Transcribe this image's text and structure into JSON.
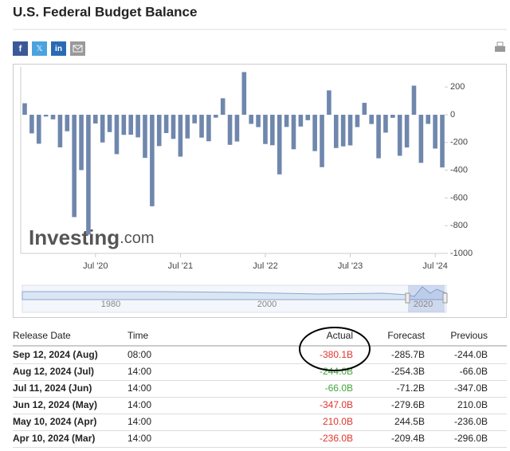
{
  "header": {
    "title": "U.S. Federal Budget Balance",
    "share": [
      "f",
      "𝕏",
      "in"
    ]
  },
  "chart_data": {
    "type": "bar",
    "color": "#6f87ad",
    "watermark": [
      "Investing",
      ".com"
    ],
    "categories": [
      null,
      null,
      null,
      null,
      null,
      null,
      null,
      null,
      null,
      null,
      "Jul '20",
      null,
      null,
      null,
      null,
      null,
      null,
      null,
      null,
      null,
      null,
      null,
      "Jul '21",
      null,
      null,
      null,
      null,
      null,
      null,
      null,
      null,
      null,
      null,
      null,
      "Jul '22",
      null,
      null,
      null,
      null,
      null,
      null,
      null,
      null,
      null,
      null,
      null,
      "Jul '23",
      null,
      null,
      null,
      null,
      null,
      null,
      null,
      null,
      null,
      null,
      null,
      "Jul '24",
      null
    ],
    "values": [
      83,
      -134,
      -209,
      -13,
      -33,
      -235,
      -119,
      -738,
      -399,
      -864,
      -63,
      -200,
      -125,
      -284,
      -145,
      -144,
      -163,
      -311,
      -660,
      -226,
      -132,
      -174,
      -302,
      -171,
      -62,
      -165,
      -191,
      -21,
      119,
      -217,
      -193,
      308,
      -66,
      -89,
      -211,
      -220,
      -430,
      -88,
      -249,
      -85,
      -39,
      -262,
      -378,
      176,
      -240,
      -228,
      -221,
      -89,
      86,
      -67,
      -314,
      -129,
      -22,
      -296,
      -236,
      210,
      -347,
      -66,
      -244,
      -380
    ],
    "ylim": [
      -1000,
      345
    ],
    "yticks": [
      200,
      0,
      -200,
      -400,
      -600,
      -800,
      -1000
    ],
    "grid": false,
    "navigator_labels": [
      "1980",
      "2000",
      "2020"
    ]
  },
  "table": {
    "columns": [
      "Release Date",
      "Time",
      "Actual",
      "Forecast",
      "Previous"
    ],
    "rows": [
      [
        "Sep 12, 2024 (Aug)",
        "08:00",
        "-380.1B",
        "-285.7B",
        "-244.0B"
      ],
      [
        "Aug 12, 2024 (Jul)",
        "14:00",
        "-244.0B",
        "-254.3B",
        "-66.0B"
      ],
      [
        "Jul 11, 2024 (Jun)",
        "14:00",
        "-66.0B",
        "-71.2B",
        "-347.0B"
      ],
      [
        "Jun 12, 2024 (May)",
        "14:00",
        "-347.0B",
        "-279.6B",
        "210.0B"
      ],
      [
        "May 10, 2024 (Apr)",
        "14:00",
        "210.0B",
        "244.5B",
        "-236.0B"
      ],
      [
        "Apr 10, 2024 (Mar)",
        "14:00",
        "-236.0B",
        "-209.4B",
        "-296.0B"
      ]
    ],
    "actual_colors": [
      "#e0352b",
      "#41a53a",
      "#41a53a",
      "#e0352b",
      "#e0352b",
      "#e0352b"
    ]
  }
}
